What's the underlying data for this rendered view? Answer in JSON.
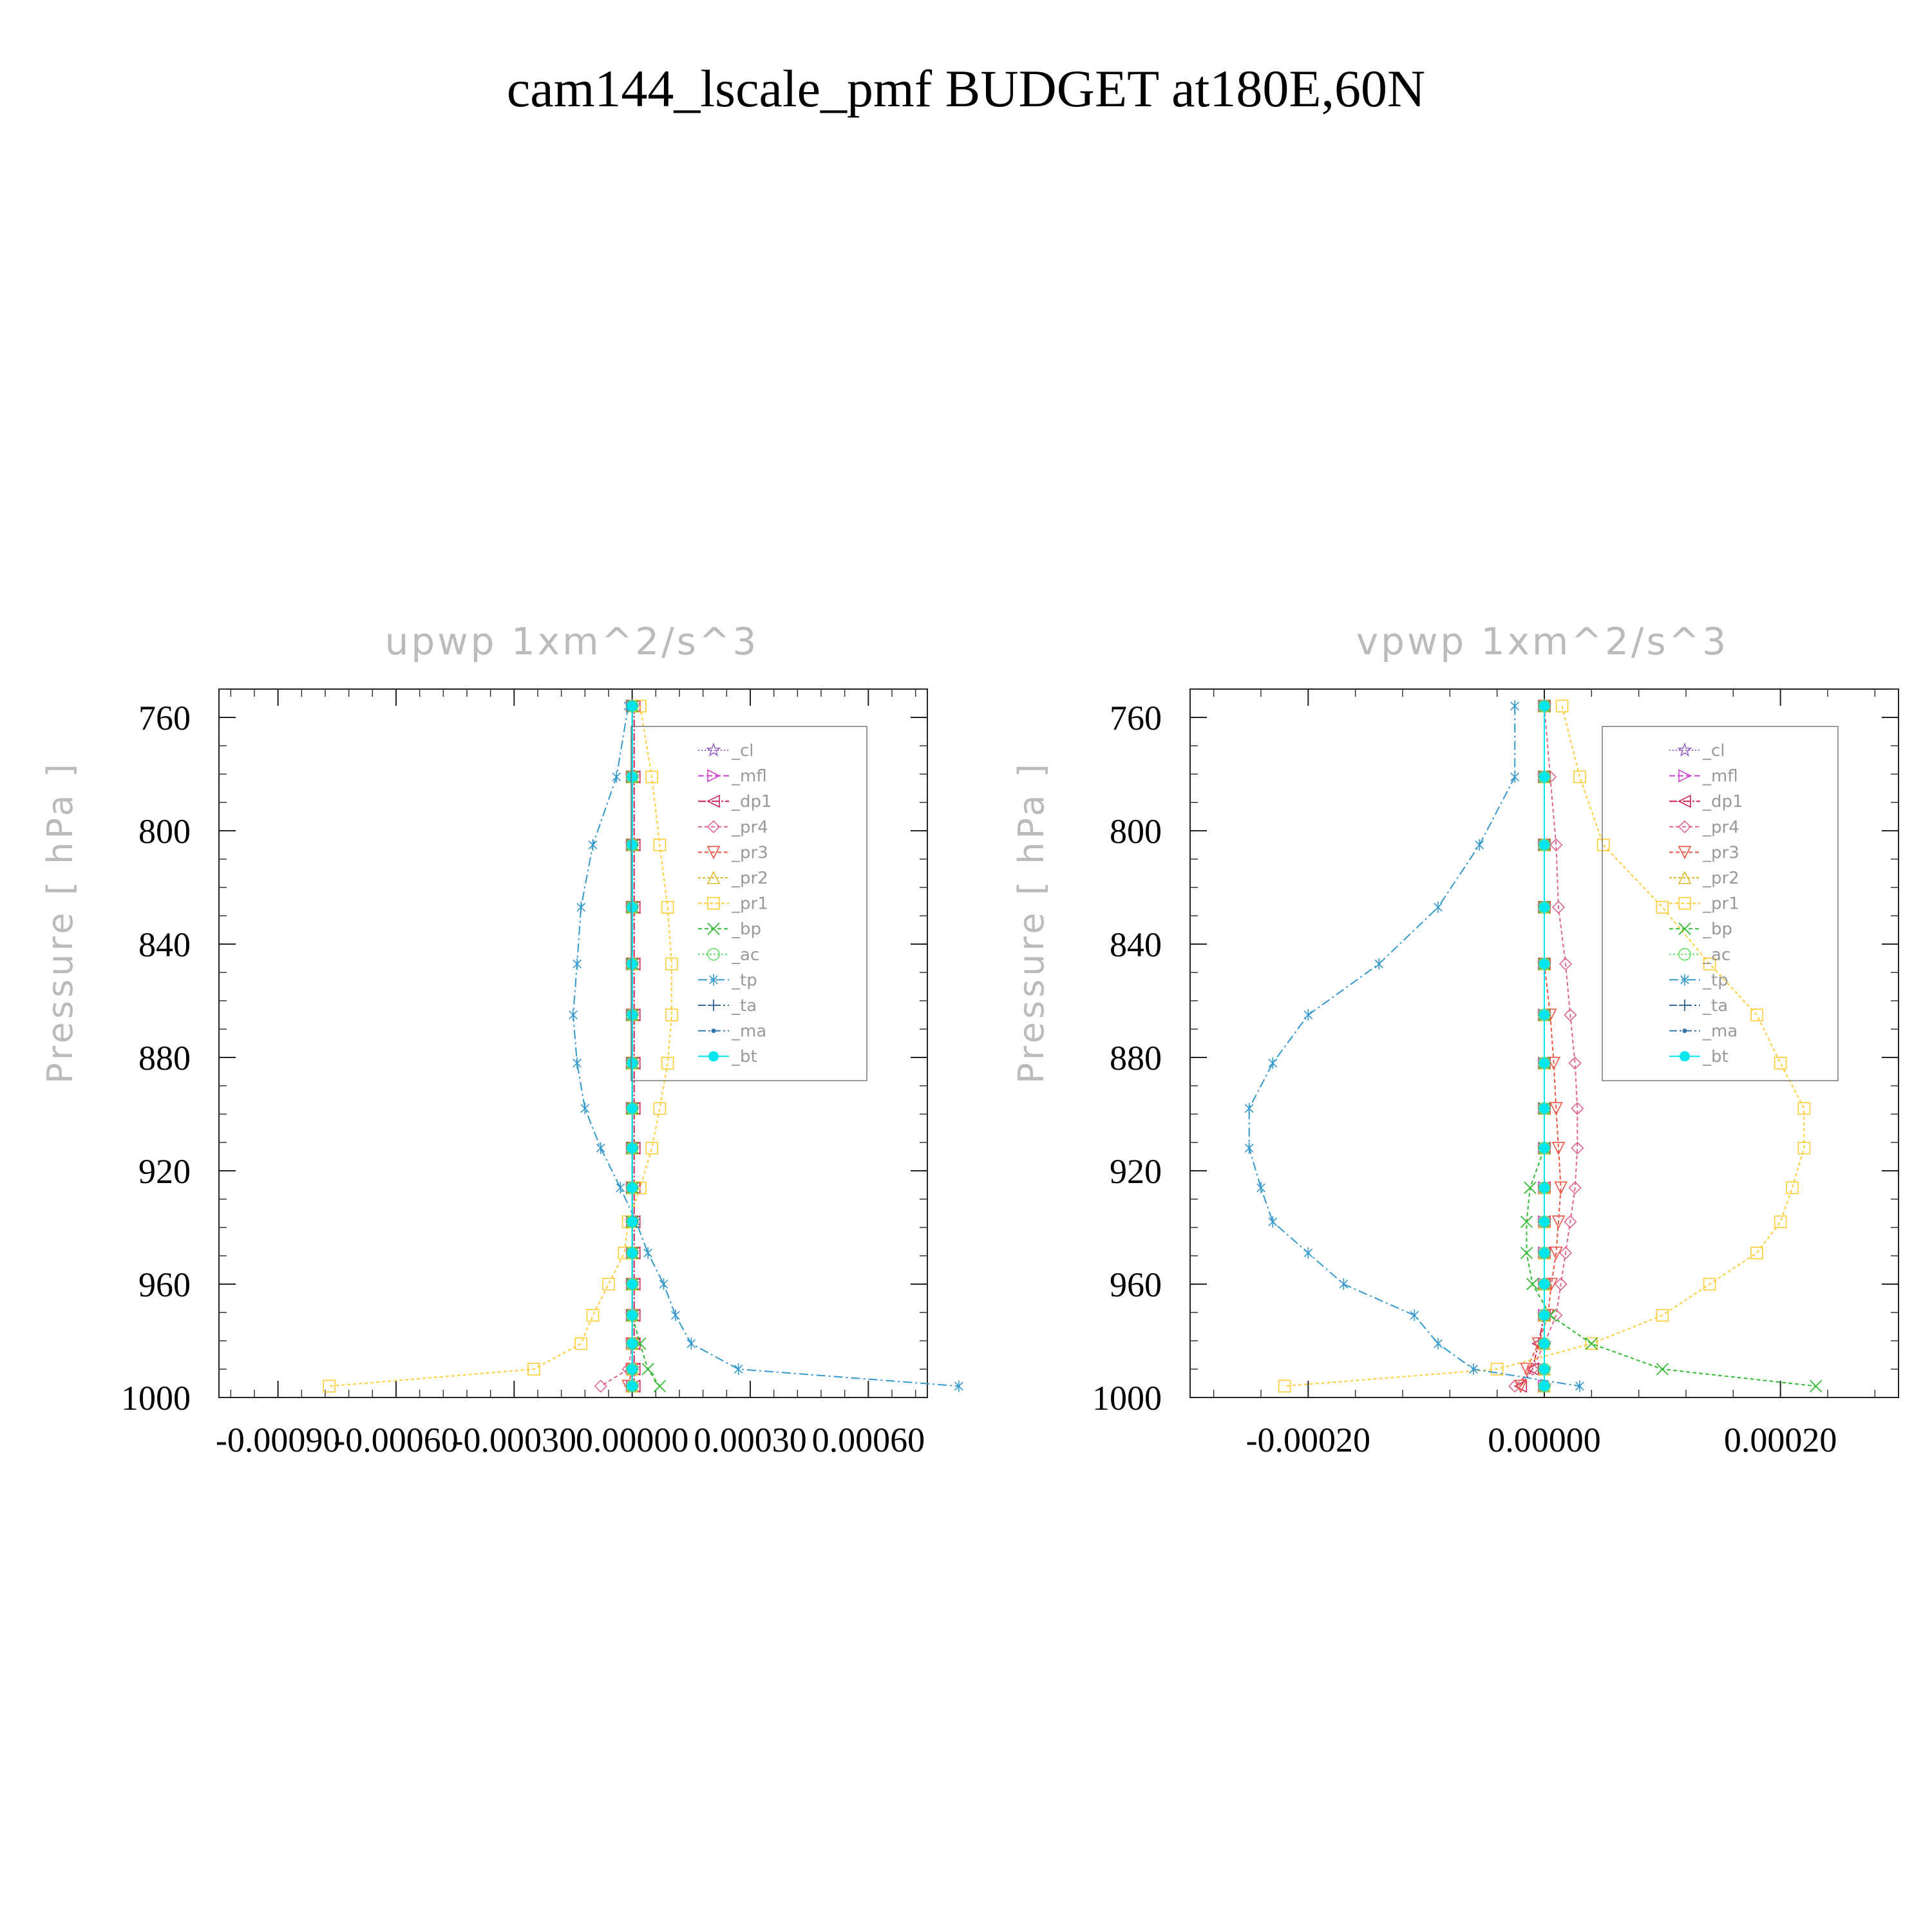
{
  "figure_title": "cam144_lscale_pmf  BUDGET at180E,60N",
  "chart_data": [
    {
      "type": "line",
      "title": "upwp    1xm^2/s^3",
      "xlabel": "",
      "ylabel": "Pressure  [ hPa ]",
      "y_inverted": true,
      "xlim": [
        -0.00105,
        0.00075
      ],
      "ylim": [
        1000,
        750
      ],
      "xticks": [
        -0.0009,
        -0.0006,
        -0.0003,
        0.0,
        0.0003,
        0.0006
      ],
      "xtick_labels": [
        "-0.00090",
        "-0.00060",
        "-0.00030",
        "0.00000",
        "0.00030",
        "0.00060"
      ],
      "yticks": [
        760,
        800,
        840,
        880,
        920,
        960,
        1000
      ],
      "ytick_labels": [
        "760",
        "800",
        "840",
        "880",
        "920",
        "960",
        "1000"
      ],
      "grid": false,
      "legend_position": "top-right",
      "levels": [
        756,
        781,
        805,
        827,
        847,
        865,
        882,
        898,
        912,
        926,
        938,
        949,
        960,
        971,
        981,
        990,
        996
      ],
      "series": [
        {
          "name": "_cl",
          "color": "#9966cc",
          "marker": "star",
          "dash": "2 3",
          "values": [
            0,
            0,
            0,
            0,
            0,
            0,
            0,
            0,
            0,
            0,
            0,
            0,
            0,
            0,
            0,
            0,
            0
          ]
        },
        {
          "name": "_mfl",
          "color": "#cc44cc",
          "marker": "tri-right",
          "dash": "9 4",
          "values": [
            0,
            0,
            0,
            0,
            0,
            0,
            0,
            0,
            0,
            0,
            0,
            0,
            0,
            0,
            0,
            0,
            0
          ]
        },
        {
          "name": "_dp1",
          "color": "#cc2255",
          "marker": "tri-left",
          "dash": "12 3 3 3",
          "values": [
            5e-06,
            5e-06,
            5e-06,
            5e-06,
            5e-06,
            5e-06,
            5e-06,
            5e-06,
            5e-06,
            5e-06,
            5e-06,
            5e-06,
            5e-06,
            5e-06,
            5e-06,
            5e-06,
            5e-06
          ]
        },
        {
          "name": "_pr4",
          "color": "#e0668a",
          "marker": "diamond",
          "dash": "6 4",
          "values": [
            0,
            0,
            0,
            0,
            0,
            0,
            0,
            0,
            0,
            0,
            0,
            0,
            0,
            0,
            0,
            -1e-05,
            -8e-05
          ]
        },
        {
          "name": "_pr3",
          "color": "#ee5544",
          "marker": "tri-down",
          "dash": "6 4",
          "values": [
            0,
            0,
            0,
            0,
            0,
            0,
            0,
            0,
            0,
            0,
            0,
            0,
            0,
            0,
            0,
            0,
            -1e-05
          ]
        },
        {
          "name": "_pr2",
          "color": "#ddbb33",
          "marker": "tri-up",
          "dash": "4 3",
          "values": [
            0,
            0,
            0,
            0,
            0,
            0,
            0,
            0,
            0,
            0,
            0,
            0,
            0,
            0,
            0,
            0,
            0
          ]
        },
        {
          "name": "_pr1",
          "color": "#ffcc33",
          "marker": "square",
          "dash": "5 4",
          "values": [
            2e-05,
            5e-05,
            7e-05,
            9e-05,
            0.0001,
            0.0001,
            9e-05,
            7e-05,
            5e-05,
            2e-05,
            -1e-05,
            -2e-05,
            -6e-05,
            -0.0001,
            -0.00013,
            -0.00025,
            -0.00077
          ]
        },
        {
          "name": "_bp",
          "color": "#33bb33",
          "marker": "x",
          "dash": "6 4",
          "values": [
            0,
            0,
            0,
            0,
            0,
            0,
            0,
            0,
            0,
            0,
            0,
            0,
            0,
            0,
            2e-05,
            4e-05,
            7e-05
          ]
        },
        {
          "name": "_ac",
          "color": "#66dd66",
          "marker": "circle",
          "dash": "3 3",
          "values": [
            0,
            0,
            0,
            0,
            0,
            0,
            0,
            0,
            0,
            0,
            0,
            0,
            0,
            0,
            0,
            0,
            0
          ]
        },
        {
          "name": "_tp",
          "color": "#3399cc",
          "marker": "asterisk",
          "dash": "14 5 3 5",
          "values": [
            -1e-05,
            -4e-05,
            -0.0001,
            -0.00013,
            -0.00014,
            -0.00015,
            -0.00014,
            -0.00012,
            -8e-05,
            -3e-05,
            1e-05,
            4e-05,
            8e-05,
            0.00011,
            0.00015,
            0.00027,
            0.00083
          ]
        },
        {
          "name": "_ta",
          "color": "#336699",
          "marker": "plus",
          "dash": "12 4 3 4",
          "values": [
            0,
            0,
            0,
            0,
            0,
            0,
            0,
            0,
            0,
            0,
            0,
            0,
            0,
            0,
            0,
            0,
            0
          ]
        },
        {
          "name": "_ma",
          "color": "#3377aa",
          "marker": "dot",
          "dash": "12 4 3 4",
          "values": [
            0,
            0,
            0,
            0,
            0,
            0,
            0,
            0,
            0,
            0,
            0,
            0,
            0,
            0,
            0,
            0,
            0
          ]
        },
        {
          "name": "_bt",
          "color": "#00e5ee",
          "marker": "filled-circle",
          "dash": "",
          "values": [
            0,
            0,
            0,
            0,
            0,
            0,
            0,
            0,
            0,
            0,
            0,
            0,
            0,
            0,
            0,
            0,
            0
          ]
        }
      ]
    },
    {
      "type": "line",
      "title": "vpwp    1xm^2/s^3",
      "xlabel": "",
      "ylabel": "Pressure  [ hPa ]",
      "y_inverted": true,
      "xlim": [
        -0.0003,
        0.0003
      ],
      "ylim": [
        1000,
        750
      ],
      "xticks": [
        -0.0002,
        0.0,
        0.0002
      ],
      "xtick_labels": [
        "-0.00020",
        "0.00000",
        "0.00020"
      ],
      "yticks": [
        760,
        800,
        840,
        880,
        920,
        960,
        1000
      ],
      "ytick_labels": [
        "760",
        "800",
        "840",
        "880",
        "920",
        "960",
        "1000"
      ],
      "grid": false,
      "legend_position": "top-right",
      "levels": [
        756,
        781,
        805,
        827,
        847,
        865,
        882,
        898,
        912,
        926,
        938,
        949,
        960,
        971,
        981,
        990,
        996
      ],
      "series": [
        {
          "name": "_cl",
          "color": "#9966cc",
          "marker": "star",
          "dash": "2 3",
          "values": [
            0,
            0,
            0,
            0,
            0,
            0,
            0,
            0,
            0,
            0,
            0,
            0,
            0,
            0,
            0,
            0,
            0
          ]
        },
        {
          "name": "_mfl",
          "color": "#cc44cc",
          "marker": "tri-right",
          "dash": "9 4",
          "values": [
            0,
            0,
            0,
            0,
            0,
            0,
            0,
            0,
            0,
            0,
            0,
            0,
            0,
            0,
            0,
            0,
            0
          ]
        },
        {
          "name": "_dp1",
          "color": "#cc2255",
          "marker": "tri-left",
          "dash": "12 3 3 3",
          "values": [
            0,
            0,
            0,
            0,
            0,
            0,
            0,
            0,
            0,
            0,
            0,
            0,
            0,
            0,
            -5e-06,
            -1e-05,
            -2e-05
          ]
        },
        {
          "name": "_pr4",
          "color": "#e0668a",
          "marker": "diamond",
          "dash": "6 4",
          "values": [
            0,
            5e-06,
            1e-05,
            1.2e-05,
            1.8e-05,
            2.2e-05,
            2.6e-05,
            2.8e-05,
            2.8e-05,
            2.6e-05,
            2.2e-05,
            1.8e-05,
            1.4e-05,
            1e-05,
            0,
            -1e-05,
            -2.5e-05
          ]
        },
        {
          "name": "_pr3",
          "color": "#ee5544",
          "marker": "tri-down",
          "dash": "6 4",
          "values": [
            0,
            0,
            0,
            0,
            0,
            5e-06,
            8e-06,
            1e-05,
            1.2e-05,
            1.4e-05,
            1.2e-05,
            1e-05,
            6e-06,
            3e-06,
            -5e-06,
            -1.5e-05,
            -2e-05
          ]
        },
        {
          "name": "_pr2",
          "color": "#ddbb33",
          "marker": "tri-up",
          "dash": "4 3",
          "values": [
            0,
            0,
            0,
            0,
            0,
            0,
            0,
            0,
            0,
            0,
            0,
            0,
            0,
            0,
            0,
            0,
            0
          ]
        },
        {
          "name": "_pr1",
          "color": "#ffcc33",
          "marker": "square",
          "dash": "5 4",
          "values": [
            1.5e-05,
            3e-05,
            5e-05,
            0.0001,
            0.00014,
            0.00018,
            0.0002,
            0.00022,
            0.00022,
            0.00021,
            0.0002,
            0.00018,
            0.00014,
            0.0001,
            4e-05,
            -4e-05,
            -0.00022
          ]
        },
        {
          "name": "_bp",
          "color": "#33bb33",
          "marker": "x",
          "dash": "6 4",
          "values": [
            0,
            0,
            0,
            0,
            0,
            0,
            0,
            0,
            0,
            -1.2e-05,
            -1.5e-05,
            -1.5e-05,
            -1e-05,
            5e-06,
            4e-05,
            0.0001,
            0.00023
          ]
        },
        {
          "name": "_ac",
          "color": "#66dd66",
          "marker": "circle",
          "dash": "3 3",
          "values": [
            0,
            0,
            0,
            0,
            0,
            0,
            0,
            0,
            0,
            0,
            0,
            0,
            0,
            0,
            0,
            0,
            0
          ]
        },
        {
          "name": "_tp",
          "color": "#3399cc",
          "marker": "asterisk",
          "dash": "14 5 3 5",
          "values": [
            -2.5e-05,
            -2.5e-05,
            -5.5e-05,
            -9e-05,
            -0.00014,
            -0.0002,
            -0.00023,
            -0.00025,
            -0.00025,
            -0.00024,
            -0.00023,
            -0.0002,
            -0.00017,
            -0.00011,
            -9e-05,
            -6e-05,
            3e-05
          ]
        },
        {
          "name": "_ta",
          "color": "#336699",
          "marker": "plus",
          "dash": "12 4 3 4",
          "values": [
            0,
            0,
            0,
            0,
            0,
            0,
            0,
            0,
            0,
            0,
            0,
            0,
            0,
            0,
            0,
            0,
            0
          ]
        },
        {
          "name": "_ma",
          "color": "#3377aa",
          "marker": "dot",
          "dash": "12 4 3 4",
          "values": [
            0,
            0,
            0,
            0,
            0,
            0,
            0,
            0,
            0,
            0,
            0,
            0,
            0,
            0,
            0,
            0,
            0
          ]
        },
        {
          "name": "_bt",
          "color": "#00e5ee",
          "marker": "filled-circle",
          "dash": "",
          "values": [
            0,
            0,
            0,
            0,
            0,
            0,
            0,
            0,
            0,
            0,
            0,
            0,
            0,
            0,
            0,
            0,
            0
          ]
        }
      ]
    }
  ]
}
